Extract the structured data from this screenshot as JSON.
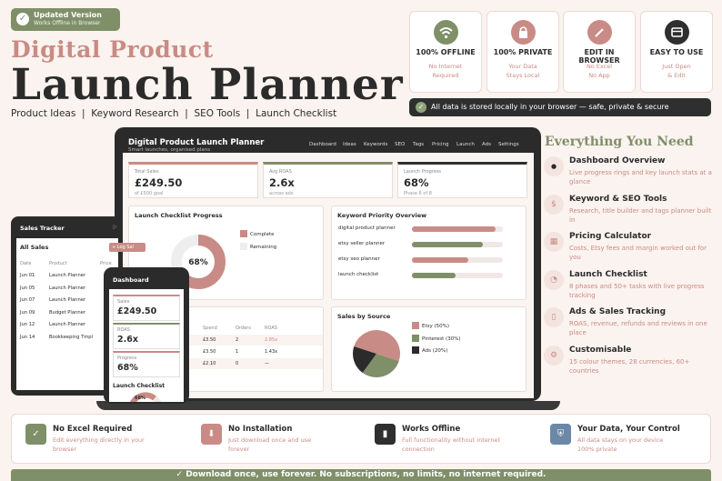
{
  "badge": {
    "title": "Updated Version",
    "subtitle": "Works Offline in Browser"
  },
  "header": {
    "title_top": "Digital Product",
    "title_main": "Launch Planner",
    "tagline": "Product Ideas  |  Keyword Research  |  SEO Tools  |  Launch Checklist"
  },
  "feature_cards": [
    {
      "icon": "wifi-icon",
      "title": "100% OFFLINE",
      "line1": "No Internet",
      "line2": "Required",
      "color": "#7f8f68"
    },
    {
      "icon": "lock-icon",
      "title": "100% PRIVATE",
      "line1": "Your Data",
      "line2": "Stays Local",
      "color": "#c98b85"
    },
    {
      "icon": "pencil-icon",
      "title": "EDIT IN BROWSER",
      "line1": "No Excel",
      "line2": "No App",
      "color": "#c98b85"
    },
    {
      "icon": "window-icon",
      "title": "EASY TO USE",
      "line1": "Just Open",
      "line2": "& Edit",
      "color": "#2f2f2f"
    }
  ],
  "local_notice": "All data is stored locally in your browser — safe, private & secure",
  "laptop": {
    "title": "Digital Product Launch Planner",
    "subtitle": "Smart launches, organised plans",
    "nav": [
      "Dashboard",
      "Ideas",
      "Keywords",
      "SEO",
      "Tags",
      "Pricing",
      "Launch",
      "Ads",
      "Settings"
    ],
    "stats": [
      {
        "label": "Total Sales",
        "value": "£249.50",
        "note": "of £500 goal",
        "color": "#c98b85"
      },
      {
        "label": "Avg ROAS",
        "value": "2.6x",
        "note": "across ads",
        "color": "#7f8f68"
      },
      {
        "label": "Launch Progress",
        "value": "68%",
        "note": "Phase 6 of 8",
        "color": "#2f2f2f"
      }
    ],
    "checklist": {
      "title": "Launch Checklist Progress",
      "percent": 68,
      "percent_label": "68%",
      "legend_complete": "Complete",
      "legend_remaining": "Remaining"
    },
    "keywords": {
      "title": "Keyword Priority Overview",
      "items": [
        {
          "label": "digital product planner",
          "value": 0.92,
          "color": "#c98b85"
        },
        {
          "label": "etsy seller planner",
          "value": 0.78,
          "color": "#7f8f68"
        },
        {
          "label": "etsy seo planner",
          "value": 0.62,
          "color": "#c98b85"
        },
        {
          "label": "launch checklist",
          "value": 0.48,
          "color": "#7f8f68"
        }
      ]
    },
    "ads_table": {
      "headers": [
        "Spend",
        "Orders",
        "ROAS"
      ],
      "rows": [
        {
          "spend": "£3.50",
          "orders": "2",
          "roas": "2.85x",
          "roas_color": "#c98b85",
          "prefix": ""
        },
        {
          "spend": "£3.50",
          "orders": "1",
          "roas": "1.43x",
          "roas_color": "#2b2b2b",
          "prefix": ""
        },
        {
          "spend": "£2.10",
          "orders": "0",
          "roas": "—",
          "roas_color": "#2b2b2b",
          "prefix": "t"
        }
      ]
    },
    "sales_by_source": {
      "title": "Sales by Source",
      "legend": [
        {
          "label": "Etsy (50%)",
          "color": "#c98b85"
        },
        {
          "label": "Pinterest (30%)",
          "color": "#7f8f68"
        },
        {
          "label": "Ads (20%)",
          "color": "#2b2b2b"
        }
      ]
    }
  },
  "chart_data": [
    {
      "type": "pie",
      "title": "Launch Checklist Progress",
      "categories": [
        "Complete",
        "Remaining"
      ],
      "values": [
        68,
        32
      ],
      "colors": [
        "#c98b85",
        "#eeeeee"
      ]
    },
    {
      "type": "bar",
      "title": "Keyword Priority Overview",
      "categories": [
        "digital product planner",
        "etsy seller planner",
        "etsy seo planner",
        "launch checklist"
      ],
      "values": [
        0.92,
        0.78,
        0.62,
        0.48
      ]
    },
    {
      "type": "pie",
      "title": "Sales by Source",
      "categories": [
        "Etsy (50%)",
        "Pinterest (30%)",
        "Ads (20%)"
      ],
      "values": [
        50,
        30,
        20
      ],
      "colors": [
        "#c98b85",
        "#7f8f68",
        "#2b2b2b"
      ]
    }
  ],
  "tablet": {
    "app_title": "Sales Tracker",
    "section": "All Sales",
    "log_button": "+ Log Sal",
    "headers": [
      "Date",
      "Product",
      "Price"
    ],
    "rows": [
      {
        "date": "Jun 01",
        "product": "Launch Planner",
        "price": "£"
      },
      {
        "date": "Jun 05",
        "product": "Launch Planner",
        "price": "£"
      },
      {
        "date": "Jun 07",
        "product": "Launch Planner",
        "price": "£"
      },
      {
        "date": "Jun 09",
        "product": "Budget Planner",
        "price": "£"
      },
      {
        "date": "Jun 12",
        "product": "Launch Planner",
        "price": "£"
      },
      {
        "date": "Jun 14",
        "product": "Bookkeeping Tmpl",
        "price": "£"
      }
    ]
  },
  "phone": {
    "title": "Dashboard",
    "stats": [
      {
        "label": "Sales",
        "value": "£249.50",
        "color": "#c98b85"
      },
      {
        "label": "ROAS",
        "value": "2.6x",
        "color": "#7f8f68"
      },
      {
        "label": "Progress",
        "value": "68%",
        "color": "#c98b85"
      }
    ],
    "checklist_title": "Launch Checklist",
    "donut_label": "68%"
  },
  "everything": {
    "title": "Everything You Need",
    "items": [
      {
        "icon": "dashboard-icon",
        "title": "Dashboard Overview",
        "desc": "Live progress rings and key launch stats at a glance"
      },
      {
        "icon": "dollar-icon",
        "title": "Keyword & SEO Tools",
        "desc": "Research, title builder and tags planner built in"
      },
      {
        "icon": "calculator-icon",
        "title": "Pricing Calculator",
        "desc": "Costs, Etsy fees and margin worked out for you"
      },
      {
        "icon": "pie-icon",
        "title": "Launch Checklist",
        "desc": "8 phases and 50+ tasks with live progress tracking"
      },
      {
        "icon": "ads-icon",
        "title": "Ads & Sales Tracking",
        "desc": "ROAS, revenue, refunds and reviews in one place"
      },
      {
        "icon": "gear-icon",
        "title": "Customisable",
        "desc": "15 colour themes, 28 currencies, 60+ countries"
      }
    ]
  },
  "bottom": [
    {
      "icon": "check-icon",
      "title": "No Excel Required",
      "desc": "Edit everything directly in your browser",
      "color": "#7f8f68"
    },
    {
      "icon": "download-icon",
      "title": "No Installation",
      "desc": "Just download once and use forever",
      "color": "#c98b85"
    },
    {
      "icon": "offline-icon",
      "title": "Works Offline",
      "desc": "Full functionality without internet connection",
      "color": "#2f2f2f"
    },
    {
      "icon": "shield-icon",
      "title": "Your Data, Your Control",
      "desc": "All data stays on your device 100% private",
      "color": "#6b88a8"
    }
  ],
  "footer": "Download once, use forever. No subscriptions, no limits, no internet required."
}
